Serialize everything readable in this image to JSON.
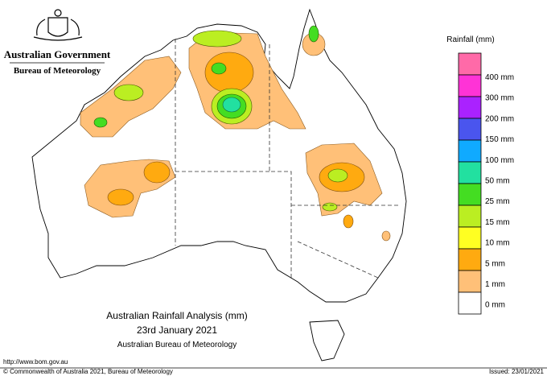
{
  "header": {
    "government": "Australian Government",
    "bureau": "Bureau of Meteorology"
  },
  "map": {
    "title": "Australian Rainfall Analysis (mm)",
    "date": "23rd January 2021",
    "source": "Australian Bureau of Meteorology"
  },
  "legend": {
    "title": "Rainfall (mm)",
    "items": [
      {
        "label": "400 mm",
        "color": "#ff6aa8"
      },
      {
        "label": "300 mm",
        "color": "#ff33d6"
      },
      {
        "label": "200 mm",
        "color": "#aa22ff"
      },
      {
        "label": "150 mm",
        "color": "#4a55ee"
      },
      {
        "label": "100 mm",
        "color": "#10aaff"
      },
      {
        "label": "50 mm",
        "color": "#22e0a0"
      },
      {
        "label": "25 mm",
        "color": "#44dd22"
      },
      {
        "label": "15 mm",
        "color": "#bbee22"
      },
      {
        "label": "10 mm",
        "color": "#ffff22"
      },
      {
        "label": "5 mm",
        "color": "#ffaa10"
      },
      {
        "label": "1 mm",
        "color": "#ffc078"
      },
      {
        "label": "0 mm",
        "color": "#ffffff"
      }
    ]
  },
  "footer": {
    "url": "http://www.bom.gov.au",
    "copyright": "© Commonwealth of Australia 2021, Bureau of Meteorology",
    "issued": "Issued: 23/01/2021"
  }
}
